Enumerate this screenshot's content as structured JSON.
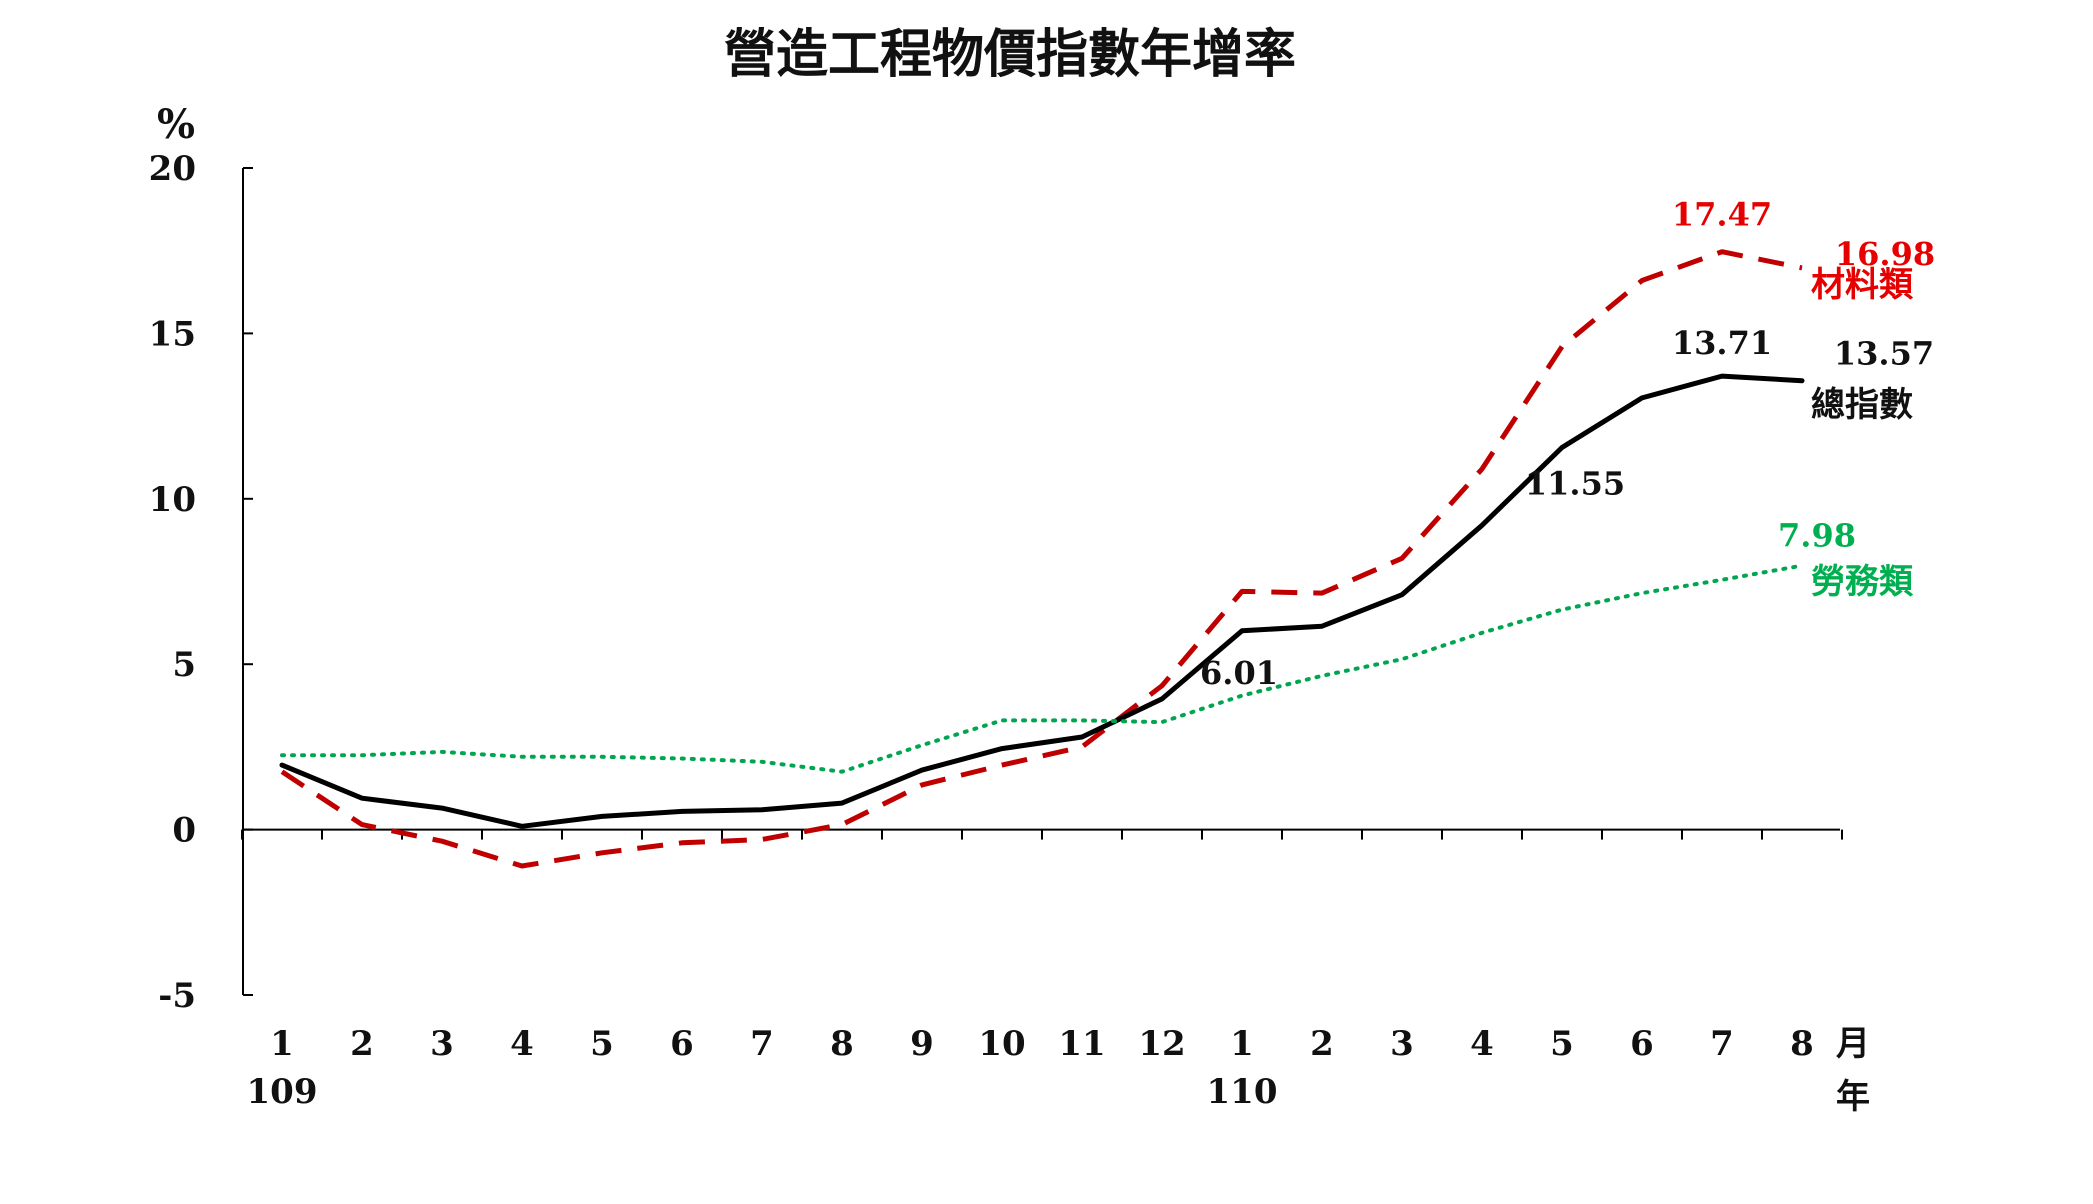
{
  "chart_data": {
    "type": "line",
    "title": "營造工程物價指數年增率",
    "ylabel": "%",
    "ylim": [
      -5,
      20
    ],
    "yticks": [
      -5,
      0,
      5,
      10,
      15,
      20
    ],
    "categories": [
      "1",
      "2",
      "3",
      "4",
      "5",
      "6",
      "7",
      "8",
      "9",
      "10",
      "11",
      "12",
      "1",
      "2",
      "3",
      "4",
      "5",
      "6",
      "7",
      "8"
    ],
    "year_labels": [
      {
        "index": 0,
        "label": "109"
      },
      {
        "index": 12,
        "label": "110"
      }
    ],
    "month_unit": "月",
    "year_unit": "年",
    "grid": false,
    "series": [
      {
        "name": "材料類",
        "color": "#c00000",
        "style": "dashed",
        "values": [
          1.75,
          0.15,
          -0.35,
          -1.1,
          -0.7,
          -0.4,
          -0.3,
          0.15,
          1.35,
          1.95,
          2.5,
          4.35,
          7.2,
          7.15,
          8.2,
          10.9,
          14.6,
          16.6,
          17.47,
          16.98
        ],
        "labels": [
          {
            "index": 18,
            "text": "17.47"
          },
          {
            "index": 19,
            "text": "16.98"
          }
        ]
      },
      {
        "name": "總指數",
        "color": "#000000",
        "style": "solid",
        "values": [
          1.95,
          0.95,
          0.65,
          0.1,
          0.4,
          0.55,
          0.6,
          0.8,
          1.8,
          2.45,
          2.8,
          3.95,
          6.01,
          6.15,
          7.1,
          9.2,
          11.55,
          13.05,
          13.71,
          13.57
        ],
        "labels": [
          {
            "index": 12,
            "text": "6.01"
          },
          {
            "index": 16,
            "text": "11.55"
          },
          {
            "index": 18,
            "text": "13.71"
          },
          {
            "index": 19,
            "text": "13.57"
          }
        ]
      },
      {
        "name": "勞務類",
        "color": "#00a550",
        "style": "dotted",
        "values": [
          2.25,
          2.25,
          2.35,
          2.2,
          2.2,
          2.15,
          2.05,
          1.75,
          2.55,
          3.3,
          3.3,
          3.25,
          4.05,
          4.65,
          5.15,
          5.95,
          6.65,
          7.15,
          7.55,
          7.98
        ],
        "labels": [
          {
            "index": 19,
            "text": "7.98"
          }
        ]
      }
    ]
  }
}
